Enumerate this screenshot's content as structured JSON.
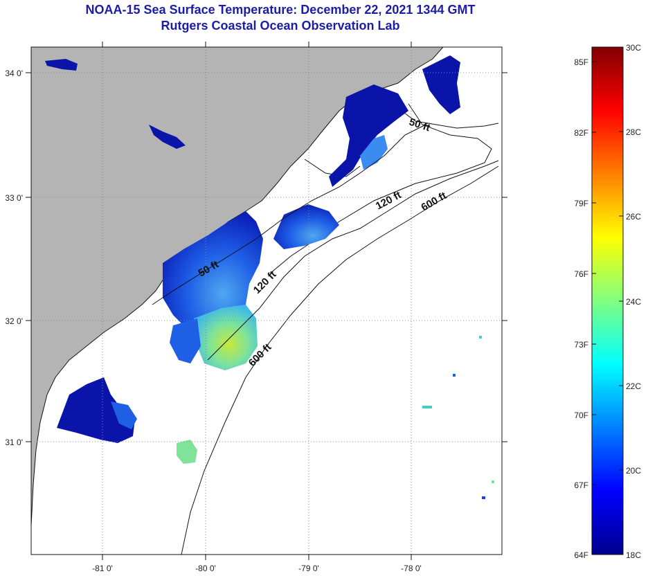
{
  "header": {
    "title": "NOAA-15 Sea Surface Temperature:  December 22, 2021 1344 GMT",
    "subtitle": "Rutgers Coastal Ocean Observation Lab"
  },
  "map": {
    "lat_labels": [
      "34 0'",
      "33 0'",
      "32 0'",
      "31 0'"
    ],
    "lon_labels": [
      "-81 0'",
      "-80 0'",
      "-79 0'",
      "-78 0'"
    ],
    "contour_labels": [
      "50 ft",
      "120 ft",
      "600 ft",
      "50 ft",
      "120 ft",
      "600 ft"
    ],
    "land_color": "#b4b4b4",
    "ocean_color": "#ffffff"
  },
  "colorbar": {
    "fahrenheit_labels": [
      "85F",
      "82F",
      "79F",
      "76F",
      "73F",
      "70F",
      "67F",
      "64F"
    ],
    "celsius_labels": [
      "30C",
      "28C",
      "26C",
      "24C",
      "22C",
      "20C",
      "18C"
    ]
  }
}
